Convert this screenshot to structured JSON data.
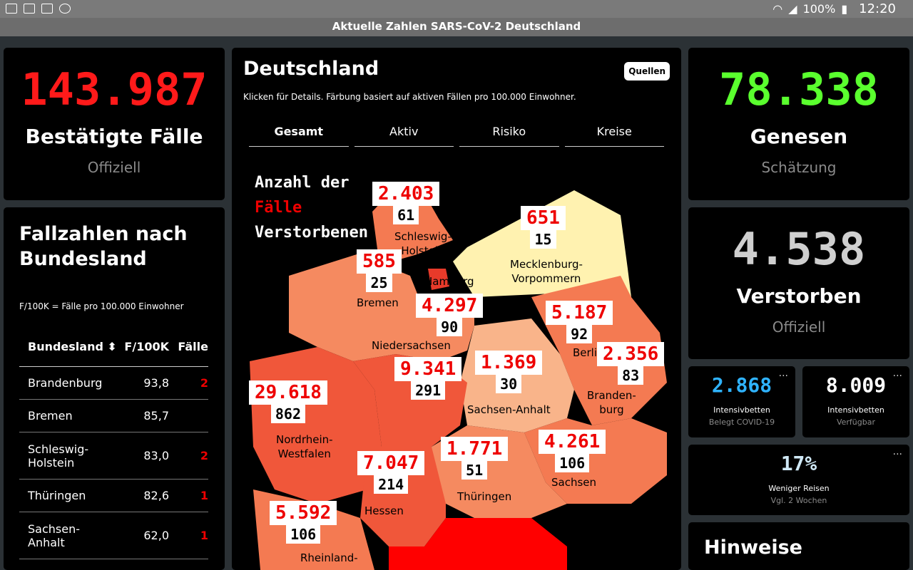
{
  "statusbar": {
    "battery": "100%",
    "time": "12:20"
  },
  "app_title": "Aktuelle Zahlen SARS-CoV-2 Deutschland",
  "confirmed": {
    "value": "143.987",
    "label": "Bestätigte Fälle",
    "sub": "Offiziell",
    "color": "#ff1a1a"
  },
  "recovered": {
    "value": "78.338",
    "label": "Genesen",
    "sub": "Schätzung",
    "color": "#5aff2e"
  },
  "deaths": {
    "value": "4.538",
    "label": "Verstorben",
    "sub": "Offiziell",
    "color": "#cfcfcf"
  },
  "states_card": {
    "title_line1": "Fallzahlen nach",
    "title_line2": "Bundesland",
    "note": "F/100K = Fälle pro 100.000 Einwohner",
    "headers": [
      "Bundesland",
      "F/100K",
      "Fälle"
    ],
    "rows": [
      {
        "name1": "Brandenburg",
        "name2": "",
        "f100k": "93,8",
        "cases": "2"
      },
      {
        "name1": "Bremen",
        "name2": "",
        "f100k": "85,7",
        "cases": ""
      },
      {
        "name1": "Schleswig-",
        "name2": "Holstein",
        "f100k": "83,0",
        "cases": "2"
      },
      {
        "name1": "Thüringen",
        "name2": "",
        "f100k": "82,6",
        "cases": "1"
      },
      {
        "name1": "Sachsen-",
        "name2": "Anhalt",
        "f100k": "62,0",
        "cases": "1"
      }
    ]
  },
  "map_card": {
    "title": "Deutschland",
    "sources_button": "Quellen",
    "hint": "Klicken für Details. Färbung basiert auf aktiven Fällen pro 100.000 Einwohner.",
    "tabs": [
      "Gesamt",
      "Aktiv",
      "Risiko",
      "Kreise"
    ],
    "legend": {
      "line1": "Anzahl der",
      "line2": "Fälle",
      "line3": "Verstorbenen"
    },
    "states": [
      {
        "name": "Schleswig-Holstein",
        "l1": "Schleswig-",
        "l2": "Holstein",
        "cases": "2.403",
        "deaths": "61",
        "color": "#f47a52"
      },
      {
        "name": "Mecklenburg-Vorpommern",
        "l1": "Mecklenburg-",
        "l2": "Vorpommern",
        "cases": "651",
        "deaths": "15",
        "color": "#fff2b0"
      },
      {
        "name": "Hamburg",
        "l1": "Hamburg",
        "l2": "",
        "cases": "",
        "deaths": "",
        "color": "#e83a2a"
      },
      {
        "name": "Bremen",
        "l1": "Bremen",
        "l2": "",
        "cases": "585",
        "deaths": "25",
        "color": "#f47a52"
      },
      {
        "name": "Niedersachsen",
        "l1": "Niedersachsen",
        "l2": "",
        "cases": "4.297",
        "deaths": "90",
        "color": "#f58a60"
      },
      {
        "name": "Berlin",
        "l1": "Berlin",
        "l2": "",
        "cases": "5.187",
        "deaths": "92",
        "color": "#f26a45"
      },
      {
        "name": "Brandenburg",
        "l1": "Branden-",
        "l2": "burg",
        "cases": "2.356",
        "deaths": "83",
        "color": "#f47a52"
      },
      {
        "name": "Sachsen-Anhalt",
        "l1": "Sachsen-Anhalt",
        "l2": "",
        "cases": "1.369",
        "deaths": "30",
        "color": "#f9b48a"
      },
      {
        "name": "Nordrhein-Westfalen",
        "l1": "Nordrhein-",
        "l2": "Westfalen",
        "cases": "29.618",
        "deaths": "862",
        "color": "#f0573a"
      },
      {
        "name": "Niedersachsen-south",
        "l1": "",
        "l2": "",
        "cases": "9.341",
        "deaths": "291",
        "color": "#f0573a"
      },
      {
        "name": "Sachsen",
        "l1": "Sachsen",
        "l2": "",
        "cases": "4.261",
        "deaths": "106",
        "color": "#f47a52"
      },
      {
        "name": "Hessen",
        "l1": "Hessen",
        "l2": "",
        "cases": "7.047",
        "deaths": "214",
        "color": "#f0573a"
      },
      {
        "name": "Thüringen",
        "l1": "Thüringen",
        "l2": "",
        "cases": "1.771",
        "deaths": "51",
        "color": "#f58a60"
      },
      {
        "name": "Rheinland-Pfalz",
        "l1": "Rheinland-",
        "l2": "",
        "cases": "5.592",
        "deaths": "106",
        "color": "#f47a52"
      }
    ]
  },
  "icu_covid": {
    "value": "2.868",
    "l1": "Intensivbetten",
    "l2": "Belegt COVID-19",
    "color": "#2fb3ff"
  },
  "icu_free": {
    "value": "8.009",
    "l1": "Intensivbetten",
    "l2": "Verfügbar",
    "color": "#ffffff"
  },
  "travel": {
    "value": "17%",
    "l1": "Weniger Reisen",
    "l2": "Vgl. 2 Wochen",
    "color": "#cfe8f5"
  },
  "notes_card": {
    "title": "Hinweise"
  }
}
